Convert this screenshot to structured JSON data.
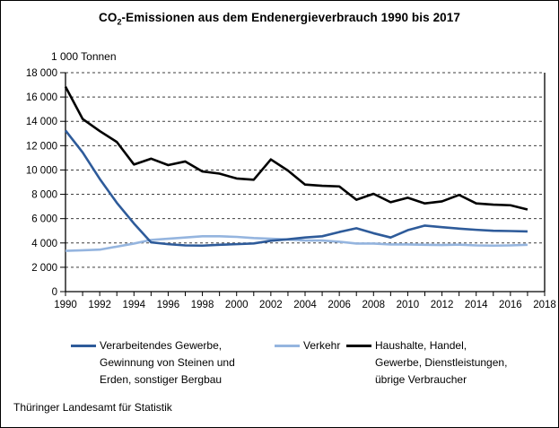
{
  "title": {
    "prefix": "CO",
    "subscript": "2",
    "suffix": "-Emissionen aus dem Endenergieverbrauch 1990 bis 2017"
  },
  "footer": {
    "source": "Thüringer Landesamt für Statistik"
  },
  "chart_data": {
    "type": "line",
    "unit_label": "1 000 Tonnen",
    "x": [
      1990,
      1991,
      1992,
      1993,
      1994,
      1995,
      1996,
      1997,
      1998,
      1999,
      2000,
      2001,
      2002,
      2003,
      2004,
      2005,
      2006,
      2007,
      2008,
      2009,
      2010,
      2011,
      2012,
      2013,
      2014,
      2015,
      2016,
      2017
    ],
    "xlim": [
      1990,
      2018
    ],
    "x_tick_label_step": 2,
    "x_tick_labels": [
      "1990",
      "1992",
      "1994",
      "1996",
      "1998",
      "2000",
      "2002",
      "2004",
      "2006",
      "2008",
      "2010",
      "2012",
      "2014",
      "2016",
      "2018"
    ],
    "ylim": [
      0,
      18000
    ],
    "y_tick_step": 2000,
    "y_tick_labels": [
      "0",
      "2 000",
      "4 000",
      "6 000",
      "8 000",
      "10 000",
      "12 000",
      "14 000",
      "16 000",
      "18 000"
    ],
    "grid": {
      "horizontal": "dashed",
      "color": "#3f3f3f"
    },
    "legend_position": "bottom",
    "series": [
      {
        "name": "Verarbeitendes Gewerbe, Gewinnung von Steinen und Erden, sonstiger Bergbau",
        "color": "#2E5B9A",
        "values": [
          13250,
          11450,
          9270,
          7300,
          5600,
          4050,
          3900,
          3800,
          3780,
          3850,
          3900,
          3960,
          4180,
          4300,
          4450,
          4550,
          4900,
          5210,
          4800,
          4450,
          5050,
          5430,
          5300,
          5180,
          5080,
          5000,
          4980,
          4950
        ]
      },
      {
        "name": "Verkehr",
        "color": "#95B5DF",
        "values": [
          3350,
          3400,
          3450,
          3700,
          3950,
          4250,
          4350,
          4450,
          4550,
          4550,
          4500,
          4400,
          4350,
          4280,
          4200,
          4200,
          4100,
          3950,
          3950,
          3880,
          3880,
          3850,
          3830,
          3860,
          3800,
          3780,
          3800,
          3850
        ]
      },
      {
        "name": "Haushalte, Handel, Gewerbe, Dienstleistungen, übrige Verbraucher",
        "color": "#000000",
        "values": [
          16850,
          14200,
          13200,
          12300,
          10450,
          10930,
          10400,
          10700,
          9880,
          9700,
          9300,
          9200,
          10870,
          9950,
          8800,
          8700,
          8650,
          7550,
          8040,
          7350,
          7720,
          7250,
          7420,
          7950,
          7250,
          7150,
          7100,
          6750
        ]
      }
    ],
    "legend": [
      {
        "color": "#2E5B9A",
        "lines": [
          "Verarbeitendes Gewerbe,",
          "Gewinnung von Steinen und",
          "Erden, sonstiger Bergbau"
        ]
      },
      {
        "color": "#95B5DF",
        "lines": [
          "Verkehr"
        ]
      },
      {
        "color": "#000000",
        "lines": [
          "Haushalte, Handel,",
          "Gewerbe, Dienstleistungen,",
          "übrige Verbraucher"
        ]
      }
    ]
  }
}
